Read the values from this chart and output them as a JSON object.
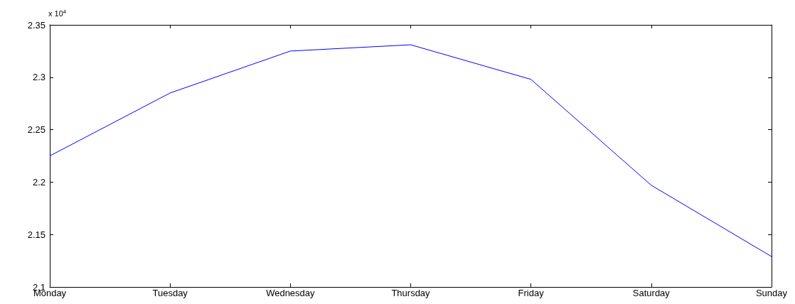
{
  "chart_data": {
    "type": "line",
    "categories": [
      "Monday",
      "Tuesday",
      "Wednesday",
      "Thursday",
      "Friday",
      "Saturday",
      "Sunday"
    ],
    "series": [
      {
        "color": "#0000ff",
        "values": [
          2.225,
          2.285,
          2.325,
          2.331,
          2.298,
          2.197,
          2.129
        ]
      }
    ],
    "ylim": [
      2.1,
      2.35
    ],
    "yticks": [
      2.1,
      2.15,
      2.2,
      2.25,
      2.3,
      2.35
    ],
    "annotations": [
      "x 10$^{4}$"
    ],
    "grid": false,
    "marker": "none",
    "line_style": "solid"
  }
}
